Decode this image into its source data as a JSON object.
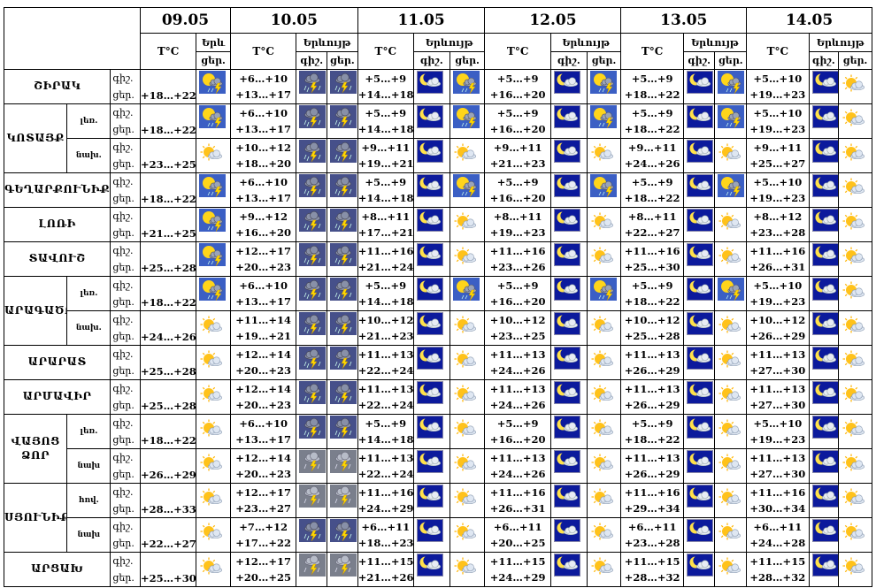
{
  "dates": [
    "09.05",
    "10.05",
    "11.05",
    "12.05",
    "13.05",
    "14.05"
  ],
  "header": {
    "temp_label": "T°C",
    "weather_label": "Երևույթ",
    "weather_label_short": "Երև",
    "night": "գիշ.",
    "day": "ցեր."
  },
  "rows": [
    {
      "region": "ՇԻՐԱԿ",
      "zone": "",
      "first": "+18…+22",
      "night": [
        "+6…+10",
        "+5…+9",
        "+5…+9",
        "+5…+9",
        "+5…+10"
      ],
      "day": [
        "+13…+17",
        "+14…+18",
        "+16…+20",
        "+18…+22",
        "+19…+23"
      ],
      "icons": [
        "sun-cloud-storm-icon",
        "storm-cloud-icon",
        "storm-cloud-icon",
        "moon-cloud-icon",
        "sun-cloud-storm-icon",
        "moon-cloud-icon",
        "sun-cloud-storm-icon",
        "moon-cloud-icon",
        "sun-cloud-storm-icon",
        "moon-cloud-icon",
        "partly-cloudy-icon"
      ]
    },
    {
      "region": "ԿՈՏԱՅՔ",
      "zone": "լեռ.",
      "first": "+18…+22",
      "night": [
        "+6…+10",
        "+5…+9",
        "+5…+9",
        "+5…+9",
        "+5…+10"
      ],
      "day": [
        "+13…+17",
        "+14…+18",
        "+16…+20",
        "+18…+22",
        "+19…+23"
      ],
      "icons": [
        "sun-cloud-storm-icon",
        "storm-cloud-icon",
        "storm-cloud-icon",
        "moon-cloud-icon",
        "sun-cloud-storm-icon",
        "moon-cloud-icon",
        "sun-cloud-storm-icon",
        "moon-cloud-icon",
        "sun-cloud-storm-icon",
        "moon-cloud-icon",
        "partly-cloudy-icon"
      ]
    },
    {
      "region": "",
      "zone": "նախ.",
      "first": "+23…+25",
      "night": [
        "+10…+12",
        "+9…+11",
        "+9…+11",
        "+9…+11",
        "+9…+11"
      ],
      "day": [
        "+18…+20",
        "+19…+21",
        "+21…+23",
        "+24…+26",
        "+25…+27"
      ],
      "icons": [
        "partly-cloudy-icon",
        "storm-cloud-icon",
        "storm-cloud-icon",
        "moon-cloud-icon",
        "partly-cloudy-icon",
        "moon-cloud-icon",
        "partly-cloudy-icon",
        "moon-cloud-icon",
        "partly-cloudy-icon",
        "moon-cloud-icon",
        "partly-cloudy-icon"
      ]
    },
    {
      "region": "ԳԵՂԱՐՔՈՒՆԻՔ",
      "zone": "",
      "first": "+18…+22",
      "night": [
        "+6…+10",
        "+5…+9",
        "+5…+9",
        "+5…+9",
        "+5…+10"
      ],
      "day": [
        "+13…+17",
        "+14…+18",
        "+16…+20",
        "+18…+22",
        "+19…+23"
      ],
      "icons": [
        "sun-cloud-storm-icon",
        "storm-cloud-icon",
        "storm-cloud-icon",
        "moon-cloud-icon",
        "sun-cloud-storm-icon",
        "moon-cloud-icon",
        "sun-cloud-storm-icon",
        "moon-cloud-icon",
        "sun-cloud-storm-icon",
        "moon-cloud-icon",
        "partly-cloudy-icon"
      ]
    },
    {
      "region": "ԼՈՌԻ",
      "zone": "",
      "first": "+21…+25",
      "night": [
        "+9…+12",
        "+8…+11",
        "+8…+11",
        "+8…+11",
        "+8…+12"
      ],
      "day": [
        "+16…+20",
        "+17…+21",
        "+19…+23",
        "+22…+27",
        "+23…+28"
      ],
      "icons": [
        "sun-cloud-storm-icon",
        "storm-cloud-icon",
        "storm-cloud-icon",
        "moon-cloud-icon",
        "partly-cloudy-icon",
        "moon-cloud-icon",
        "partly-cloudy-icon",
        "moon-cloud-icon",
        "partly-cloudy-icon",
        "moon-cloud-icon",
        "partly-cloudy-icon"
      ]
    },
    {
      "region": "ՏԱՎՈՒՇ",
      "zone": "",
      "first": "+25…+28",
      "night": [
        "+12…+17",
        "+11…+16",
        "+11…+16",
        "+11…+16",
        "+11…+16"
      ],
      "day": [
        "+20…+23",
        "+21…+24",
        "+23…+26",
        "+25…+30",
        "+26…+31"
      ],
      "icons": [
        "sun-cloud-storm-icon",
        "storm-cloud-icon",
        "storm-cloud-icon",
        "moon-cloud-icon",
        "partly-cloudy-icon",
        "moon-cloud-icon",
        "partly-cloudy-icon",
        "moon-cloud-icon",
        "partly-cloudy-icon",
        "moon-cloud-icon",
        "partly-cloudy-icon"
      ]
    },
    {
      "region": "ԱՐԱԳԱԾՈՏՆ",
      "zone": "լեռ.",
      "first": "+18…+22",
      "night": [
        "+6…+10",
        "+5…+9",
        "+5…+9",
        "+5…+9",
        "+5…+10"
      ],
      "day": [
        "+13…+17",
        "+14…+18",
        "+16…+20",
        "+18…+22",
        "+19…+23"
      ],
      "icons": [
        "sun-cloud-storm-icon",
        "storm-cloud-icon",
        "storm-cloud-icon",
        "moon-cloud-icon",
        "sun-cloud-storm-icon",
        "moon-cloud-icon",
        "sun-cloud-storm-icon",
        "moon-cloud-icon",
        "sun-cloud-storm-icon",
        "moon-cloud-icon",
        "partly-cloudy-icon"
      ]
    },
    {
      "region": "",
      "zone": "նախ.",
      "first": "+24…+26",
      "night": [
        "+11…+14",
        "+10…+12",
        "+10…+12",
        "+10…+12",
        "+10…+12"
      ],
      "day": [
        "+19…+21",
        "+21…+23",
        "+23…+25",
        "+25…+28",
        "+26…+29"
      ],
      "icons": [
        "partly-cloudy-icon",
        "storm-cloud-icon",
        "storm-cloud-icon",
        "moon-cloud-icon",
        "partly-cloudy-icon",
        "moon-cloud-icon",
        "partly-cloudy-icon",
        "moon-cloud-icon",
        "partly-cloudy-icon",
        "moon-cloud-icon",
        "partly-cloudy-icon"
      ]
    },
    {
      "region": "ԱՐԱՐԱՏ",
      "zone": "",
      "first": "+25…+28",
      "night": [
        "+12…+14",
        "+11…+13",
        "+11…+13",
        "+11…+13",
        "+11…+13"
      ],
      "day": [
        "+20…+23",
        "+22…+24",
        "+24…+26",
        "+26…+29",
        "+27…+30"
      ],
      "icons": [
        "partly-cloudy-icon",
        "storm-cloud-icon",
        "storm-cloud-icon",
        "moon-cloud-icon",
        "partly-cloudy-icon",
        "moon-cloud-icon",
        "partly-cloudy-icon",
        "moon-cloud-icon",
        "partly-cloudy-icon",
        "moon-cloud-icon",
        "partly-cloudy-icon"
      ]
    },
    {
      "region": "ԱՐՄԱՎԻՐ",
      "zone": "",
      "first": "+25…+28",
      "night": [
        "+12…+14",
        "+11…+13",
        "+11…+13",
        "+11…+13",
        "+11…+13"
      ],
      "day": [
        "+20…+23",
        "+22…+24",
        "+24…+26",
        "+26…+29",
        "+27…+30"
      ],
      "icons": [
        "partly-cloudy-icon",
        "storm-cloud-icon",
        "storm-cloud-icon",
        "moon-cloud-icon",
        "partly-cloudy-icon",
        "moon-cloud-icon",
        "partly-cloudy-icon",
        "moon-cloud-icon",
        "partly-cloudy-icon",
        "moon-cloud-icon",
        "partly-cloudy-icon"
      ]
    },
    {
      "region": "ՎԱՅՈՑ ՁՈՐ",
      "zone": "լեռ.",
      "first": "+18…+22",
      "night": [
        "+6…+10",
        "+5…+9",
        "+5…+9",
        "+5…+9",
        "+5…+10"
      ],
      "day": [
        "+13…+17",
        "+14…+18",
        "+16…+20",
        "+18…+22",
        "+19…+23"
      ],
      "icons": [
        "partly-cloudy-icon",
        "storm-cloud-icon",
        "storm-cloud-icon",
        "moon-cloud-icon",
        "partly-cloudy-icon",
        "moon-cloud-icon",
        "partly-cloudy-icon",
        "moon-cloud-icon",
        "partly-cloudy-icon",
        "moon-cloud-icon",
        "partly-cloudy-icon"
      ]
    },
    {
      "region": "",
      "zone": "նախ",
      "first": "+26…+29",
      "night": [
        "+12…+14",
        "+11…+13",
        "+11…+13",
        "+11…+13",
        "+11…+13"
      ],
      "day": [
        "+20…+23",
        "+22…+24",
        "+24…+26",
        "+26…+29",
        "+27…+30"
      ],
      "icons": [
        "partly-cloudy-icon",
        "storm-icon",
        "storm-icon",
        "moon-cloud-icon",
        "partly-cloudy-icon",
        "moon-cloud-icon",
        "partly-cloudy-icon",
        "moon-cloud-icon",
        "partly-cloudy-icon",
        "moon-cloud-icon",
        "partly-cloudy-icon"
      ]
    },
    {
      "region": "ՍՅՈՒՆԻՔ",
      "zone": "հով.",
      "first": "+28…+33",
      "night": [
        "+12…+17",
        "+11…+16",
        "+11…+16",
        "+11…+16",
        "+11…+16"
      ],
      "day": [
        "+23…+27",
        "+24…+29",
        "+26…+31",
        "+29…+34",
        "+30…+34"
      ],
      "icons": [
        "partly-cloudy-icon",
        "storm-icon",
        "storm-icon",
        "moon-cloud-icon",
        "partly-cloudy-icon",
        "moon-cloud-icon",
        "partly-cloudy-icon",
        "moon-cloud-icon",
        "partly-cloudy-icon",
        "moon-cloud-icon",
        "partly-cloudy-icon"
      ]
    },
    {
      "region": "",
      "zone": "նախ",
      "first": "+22…+27",
      "night": [
        "+7…+12",
        "+6…+11",
        "+6…+11",
        "+6…+11",
        "+6…+11"
      ],
      "day": [
        "+17…+22",
        "+18…+23",
        "+20…+25",
        "+23…+28",
        "+24…+28"
      ],
      "icons": [
        "partly-cloudy-icon",
        "storm-cloud-icon",
        "storm-cloud-icon",
        "moon-cloud-icon",
        "partly-cloudy-icon",
        "moon-cloud-icon",
        "partly-cloudy-icon",
        "moon-cloud-icon",
        "partly-cloudy-icon",
        "moon-cloud-icon",
        "partly-cloudy-icon"
      ]
    },
    {
      "region": "ԱՐՑԱԽ",
      "zone": "",
      "first": "+25…+30",
      "night": [
        "+12…+17",
        "+11…+15",
        "+11…+15",
        "+11…+15",
        "+11…+15"
      ],
      "day": [
        "+20…+25",
        "+21…+26",
        "+24…+29",
        "+28…+32",
        "+28…+32"
      ],
      "icons": [
        "partly-cloudy-icon",
        "storm-icon",
        "storm-icon",
        "moon-cloud-icon",
        "partly-cloudy-icon",
        "moon-cloud-icon",
        "partly-cloudy-icon",
        "moon-cloud-icon",
        "partly-cloudy-icon",
        "moon-cloud-icon",
        "partly-cloudy-icon"
      ]
    }
  ]
}
